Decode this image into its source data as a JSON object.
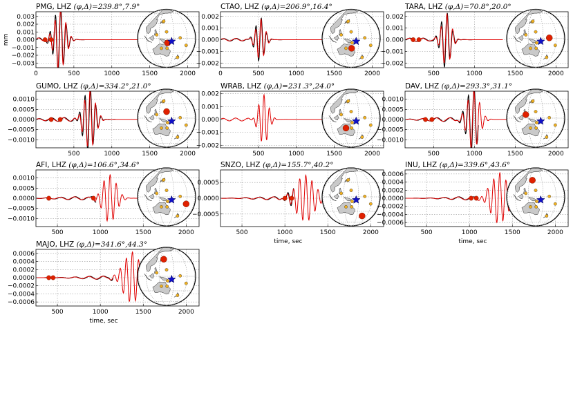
{
  "ylabel_first": "mm",
  "xlabel": "time, sec",
  "colors": {
    "observed": "#000000",
    "synthetic": "#e00000",
    "marker": "#e02000",
    "station": "#f0b020",
    "event": "#1010c8"
  },
  "panels": [
    {
      "name": "PMG",
      "title_station": "PMG, LHZ ",
      "phi": "239.8",
      "delta": "7.9",
      "xmin": 0,
      "xmax": 2150,
      "xticks": [
        0,
        500,
        1000,
        1500,
        2000
      ],
      "ymin": -0.0036,
      "ymax": 0.0036,
      "yticks": [
        -0.003,
        -0.002,
        -0.001,
        0.0,
        0.001,
        0.002,
        0.003
      ],
      "ytick_labels": [
        "−0.003",
        "−0.002",
        "−0.001",
        "0.000",
        "0.001",
        "0.002",
        "0.003"
      ],
      "amp": 0.0042,
      "center": 310,
      "width": 150,
      "freq": 0.014,
      "tend": 1450,
      "marks": [
        120,
        200
      ],
      "obs_end": 1500,
      "has_ylabel": true,
      "has_xlabel": false,
      "st_lon": 147,
      "st_lat": -9
    },
    {
      "name": "CTAO",
      "title_station": "CTAO, LHZ ",
      "phi": "206.9",
      "delta": "16.4",
      "xmin": 0,
      "xmax": 2150,
      "xticks": [
        0,
        500,
        1000,
        1500,
        2000
      ],
      "ymin": -0.0024,
      "ymax": 0.0024,
      "yticks": [
        -0.002,
        -0.001,
        0.0,
        0.001,
        0.002
      ],
      "ytick_labels": [
        "−0.002",
        "−0.001",
        "0.000",
        "0.001",
        "0.002"
      ],
      "amp": 0.0019,
      "center": 520,
      "width": 120,
      "freq": 0.014,
      "tend": 1450,
      "marks": [],
      "obs_end": 1450,
      "has_ylabel": false,
      "has_xlabel": false,
      "st_lon": 146,
      "st_lat": -20
    },
    {
      "name": "TARA",
      "title_station": "TARA, LHZ ",
      "phi": "70.8",
      "delta": "20.0",
      "xmin": 150,
      "xmax": 2150,
      "xticks": [
        500,
        1000,
        1500,
        2000
      ],
      "ymin": -0.0024,
      "ymax": 0.0024,
      "yticks": [
        -0.002,
        -0.001,
        0.0,
        0.001,
        0.002
      ],
      "ytick_labels": [
        "−0.002",
        "−0.001",
        "0.000",
        "0.001",
        "0.002"
      ],
      "amp": 0.0024,
      "center": 650,
      "width": 120,
      "freq": 0.014,
      "tend": 1350,
      "marks": [
        250,
        320
      ],
      "obs_end": 1250,
      "has_ylabel": false,
      "has_xlabel": false,
      "st_lon": 173,
      "st_lat": 1
    },
    {
      "name": "GUMO",
      "title_station": "GUMO, LHZ ",
      "phi": "334.2",
      "delta": "21.0",
      "xmin": 0,
      "xmax": 2150,
      "xticks": [
        500,
        1000,
        1500,
        2000
      ],
      "ymin": -0.0014,
      "ymax": 0.0014,
      "yticks": [
        -0.001,
        -0.0005,
        0.0,
        0.0005,
        0.001
      ],
      "ytick_labels": [
        "−0.0010",
        "−0.0005",
        "0.0000",
        "0.0005",
        "0.0010"
      ],
      "amp": 0.0016,
      "center": 700,
      "width": 150,
      "freq": 0.014,
      "tend": 1350,
      "marks": [
        200,
        320
      ],
      "obs_end": 1300,
      "has_ylabel": false,
      "has_xlabel": false,
      "st_lon": 145,
      "st_lat": 13
    },
    {
      "name": "WRAB",
      "title_station": "WRAB, LHZ ",
      "phi": "231.3",
      "delta": "24.0",
      "xmin": 0,
      "xmax": 2150,
      "xticks": [
        500,
        1000,
        1500,
        2000
      ],
      "ymin": -0.0022,
      "ymax": 0.0022,
      "yticks": [
        -0.002,
        -0.001,
        0.0,
        0.001,
        0.002
      ],
      "ytick_labels": [
        "−0.002",
        "−0.001",
        "0.000",
        "0.001",
        "0.002"
      ],
      "amp": 0.0021,
      "center": 560,
      "width": 130,
      "freq": 0.014,
      "tend": 1500,
      "marks": [],
      "obs_end": 0,
      "has_ylabel": false,
      "has_xlabel": false,
      "st_lon": 134,
      "st_lat": -20
    },
    {
      "name": "DAV",
      "title_station": "DAV, LHZ ",
      "phi": "293.3",
      "delta": "31.1",
      "xmin": 150,
      "xmax": 2150,
      "xticks": [
        500,
        1000,
        1500,
        2000
      ],
      "ymin": -0.0014,
      "ymax": 0.0014,
      "yticks": [
        -0.001,
        -0.0005,
        0.0,
        0.0005,
        0.001
      ],
      "ytick_labels": [
        "−0.0010",
        "−0.0005",
        "0.0000",
        "0.0005",
        "0.0010"
      ],
      "amp": 0.0016,
      "center": 980,
      "width": 150,
      "freq": 0.014,
      "tend": 1750,
      "marks": [
        400,
        480
      ],
      "obs_end": 1050,
      "has_ylabel": false,
      "has_xlabel": false,
      "st_lon": 125,
      "st_lat": 7
    },
    {
      "name": "AFI",
      "title_station": "AFI, LHZ ",
      "phi": "106.6",
      "delta": "34.6",
      "xmin": 250,
      "xmax": 2150,
      "xticks": [
        500,
        1000,
        1500,
        2000
      ],
      "ymin": -0.0014,
      "ymax": 0.0014,
      "yticks": [
        -0.001,
        -0.0005,
        0.0,
        0.0005,
        0.001
      ],
      "ytick_labels": [
        "−0.0010",
        "−0.0005",
        "0.0000",
        "0.0005",
        "0.0010"
      ],
      "amp": 0.0013,
      "center": 1100,
      "width": 160,
      "freq": 0.014,
      "tend": 1900,
      "marks": [
        400,
        920
      ],
      "obs_end": 950,
      "has_ylabel": false,
      "has_xlabel": false,
      "st_lon": -171,
      "st_lat": -14
    },
    {
      "name": "SNZO",
      "title_station": "SNZO, LHZ ",
      "phi": "155.7",
      "delta": "40.2",
      "xmin": 250,
      "xmax": 2150,
      "xticks": [
        500,
        1000,
        1500,
        2000
      ],
      "ymin": -0.0009,
      "ymax": 0.0009,
      "yticks": [
        -0.0005,
        0.0,
        0.0005
      ],
      "ytick_labels": [
        "−0.0005",
        "0.0000",
        "0.0005"
      ],
      "amp": 0.0008,
      "center": 1230,
      "width": 220,
      "freq": 0.014,
      "tend": 1950,
      "marks": [
        1000,
        1080
      ],
      "obs_end": 1100,
      "has_ylabel": false,
      "has_xlabel": true,
      "st_lon": 175,
      "st_lat": -41
    },
    {
      "name": "INU",
      "title_station": "INU, LHZ ",
      "phi": "339.6",
      "delta": "43.6",
      "xmin": 250,
      "xmax": 2150,
      "xticks": [
        500,
        1000,
        1500,
        2000
      ],
      "ymin": -0.0007,
      "ymax": 0.0007,
      "yticks": [
        -0.0006,
        -0.0004,
        -0.0002,
        0.0,
        0.0002,
        0.0004,
        0.0006
      ],
      "ytick_labels": [
        "−0.0006",
        "−0.0004",
        "−0.0002",
        "0.0000",
        "0.0002",
        "0.0004",
        "0.0006"
      ],
      "amp": 0.00068,
      "center": 1340,
      "width": 200,
      "freq": 0.014,
      "tend": 2000,
      "marks": [
        1020,
        1080
      ],
      "obs_end": 1100,
      "has_ylabel": false,
      "has_xlabel": true,
      "st_lon": 137,
      "st_lat": 35
    },
    {
      "name": "MAJO",
      "title_station": "MAJO, LHZ ",
      "phi": "341.6",
      "delta": "44.3",
      "xmin": 250,
      "xmax": 2150,
      "xticks": [
        500,
        1000,
        1500,
        2000
      ],
      "ymin": -0.0007,
      "ymax": 0.0007,
      "yticks": [
        -0.0006,
        -0.0004,
        -0.0002,
        0.0,
        0.0002,
        0.0004,
        0.0006
      ],
      "ytick_labels": [
        "−0.0006",
        "−0.0004",
        "−0.0002",
        "0.0000",
        "0.0002",
        "0.0004",
        "0.0006"
      ],
      "amp": 0.00068,
      "center": 1360,
      "width": 200,
      "freq": 0.014,
      "tend": 2000,
      "marks": [
        400,
        450
      ],
      "obs_end": 1150,
      "has_ylabel": false,
      "has_xlabel": true,
      "st_lon": 138,
      "st_lat": 36
    }
  ],
  "map": {
    "center_lon": 145,
    "center_lat": 0,
    "event": {
      "lon": 155,
      "lat": -6
    },
    "stations": [
      {
        "name": "PMG",
        "lon": 147,
        "lat": -9
      },
      {
        "name": "CTAO",
        "lon": 146,
        "lat": -20
      },
      {
        "name": "TARA",
        "lon": 173,
        "lat": 1
      },
      {
        "name": "GUMO",
        "lon": 145,
        "lat": 13
      },
      {
        "name": "WRAB",
        "lon": 134,
        "lat": -20
      },
      {
        "name": "DAV",
        "lon": 125,
        "lat": 7
      },
      {
        "name": "AFI",
        "lon": -171,
        "lat": -14
      },
      {
        "name": "SNZO",
        "lon": 175,
        "lat": -41
      },
      {
        "name": "INU",
        "lon": 137,
        "lat": 35
      },
      {
        "name": "MAJO",
        "lon": 138,
        "lat": 36
      }
    ]
  },
  "chart_data": [
    {
      "type": "line",
      "title": "PMG, LHZ (φ,Δ)=239.8°,7.9°",
      "ylabel": "mm",
      "xlim": [
        0,
        2150
      ],
      "ylim": [
        -0.0036,
        0.0036
      ],
      "series": [
        {
          "values": []
        }
      ]
    },
    {
      "type": "line",
      "title": "CTAO, LHZ (φ,Δ)=206.9°,16.4°",
      "xlim": [
        0,
        2150
      ],
      "ylim": [
        -0.0024,
        0.0024
      ]
    },
    {
      "type": "line",
      "title": "TARA, LHZ (φ,Δ)=70.8°,20.0°",
      "xlim": [
        150,
        2150
      ],
      "ylim": [
        -0.0024,
        0.0024
      ]
    },
    {
      "type": "line",
      "title": "GUMO, LHZ (φ,Δ)=334.2°,21.0°",
      "xlim": [
        0,
        2150
      ],
      "ylim": [
        -0.0014,
        0.0014
      ]
    },
    {
      "type": "line",
      "title": "WRAB, LHZ (φ,Δ)=231.3°,24.0°",
      "xlim": [
        0,
        2150
      ],
      "ylim": [
        -0.0022,
        0.0022
      ]
    },
    {
      "type": "line",
      "title": "DAV, LHZ (φ,Δ)=293.3°,31.1°",
      "xlim": [
        150,
        2150
      ],
      "ylim": [
        -0.0014,
        0.0014
      ]
    },
    {
      "type": "line",
      "title": "AFI, LHZ (φ,Δ)=106.6°,34.6°",
      "xlim": [
        250,
        2150
      ],
      "ylim": [
        -0.0014,
        0.0014
      ]
    },
    {
      "type": "line",
      "title": "SNZO, LHZ (φ,Δ)=155.7°,40.2°",
      "xlabel": "time, sec",
      "xlim": [
        250,
        2150
      ],
      "ylim": [
        -0.0009,
        0.0009
      ]
    },
    {
      "type": "line",
      "title": "INU, LHZ (φ,Δ)=339.6°,43.6°",
      "xlabel": "time, sec",
      "xlim": [
        250,
        2150
      ],
      "ylim": [
        -0.0007,
        0.0007
      ]
    },
    {
      "type": "line",
      "title": "MAJO, LHZ (φ,Δ)=341.6°,44.3°",
      "xlabel": "time, sec",
      "xlim": [
        250,
        2150
      ],
      "ylim": [
        -0.0007,
        0.0007
      ]
    }
  ]
}
